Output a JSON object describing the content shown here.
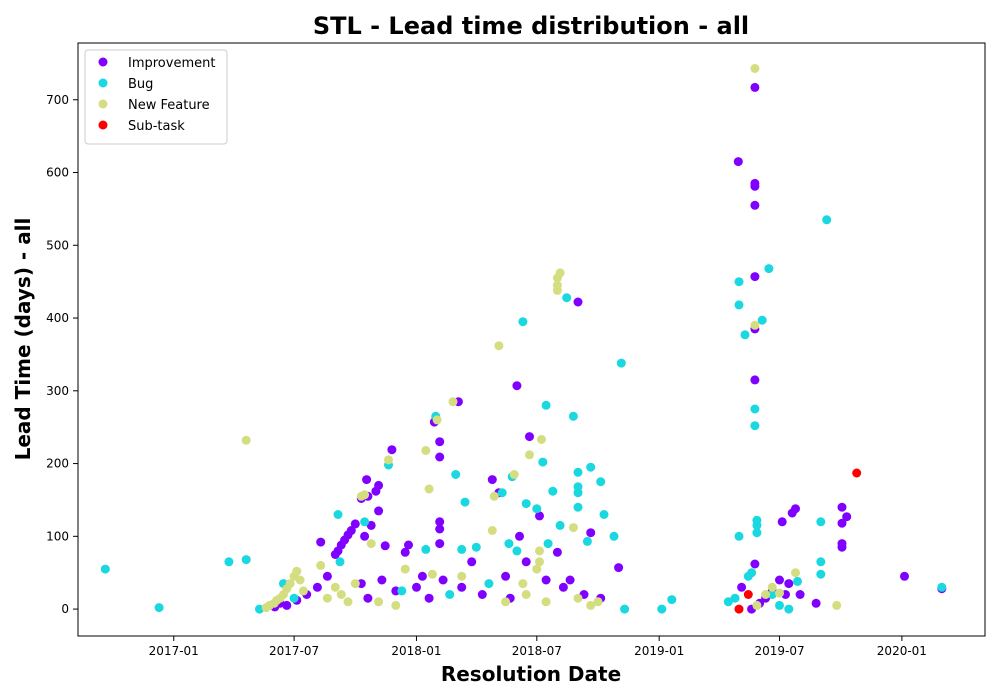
{
  "chart_data": {
    "type": "scatter",
    "title": "STL - Lead time distribution - all",
    "xlabel": "Resolution Date",
    "ylabel": "Lead Time (days) - all",
    "x_type": "date",
    "xlim": [
      "2016-08-10",
      "2020-05-05"
    ],
    "ylim": [
      -37,
      778
    ],
    "x_ticks": [
      {
        "label": "2017-01",
        "date": "2017-01-01"
      },
      {
        "label": "2017-07",
        "date": "2017-07-01"
      },
      {
        "label": "2018-01",
        "date": "2018-01-01"
      },
      {
        "label": "2018-07",
        "date": "2018-07-01"
      },
      {
        "label": "2019-01",
        "date": "2019-01-01"
      },
      {
        "label": "2019-07",
        "date": "2019-07-01"
      },
      {
        "label": "2020-01",
        "date": "2020-01-01"
      }
    ],
    "y_ticks": [
      0,
      100,
      200,
      300,
      400,
      500,
      600,
      700
    ],
    "grid": false,
    "legend_position": "top-left",
    "series": [
      {
        "name": "Improvement",
        "color": "#8000ff",
        "points": [
          [
            "2017-06-02",
            3
          ],
          [
            "2017-06-10",
            8
          ],
          [
            "2017-06-20",
            5
          ],
          [
            "2017-07-05",
            12
          ],
          [
            "2017-07-20",
            20
          ],
          [
            "2017-08-05",
            30
          ],
          [
            "2017-08-10",
            92
          ],
          [
            "2017-08-20",
            45
          ],
          [
            "2017-09-01",
            75
          ],
          [
            "2017-09-05",
            80
          ],
          [
            "2017-09-10",
            88
          ],
          [
            "2017-09-15",
            95
          ],
          [
            "2017-09-20",
            102
          ],
          [
            "2017-09-25",
            108
          ],
          [
            "2017-10-01",
            117
          ],
          [
            "2017-10-10",
            152
          ],
          [
            "2017-10-15",
            100
          ],
          [
            "2017-10-18",
            178
          ],
          [
            "2017-10-20",
            155
          ],
          [
            "2017-10-25",
            115
          ],
          [
            "2017-11-01",
            162
          ],
          [
            "2017-11-05",
            135
          ],
          [
            "2017-11-05",
            170
          ],
          [
            "2017-11-15",
            87
          ],
          [
            "2017-11-25",
            219
          ],
          [
            "2017-10-10",
            35
          ],
          [
            "2017-10-20",
            15
          ],
          [
            "2017-11-10",
            40
          ],
          [
            "2017-12-01",
            25
          ],
          [
            "2017-12-15",
            78
          ],
          [
            "2017-12-20",
            88
          ],
          [
            "2018-01-01",
            30
          ],
          [
            "2018-01-10",
            45
          ],
          [
            "2018-01-20",
            15
          ],
          [
            "2018-01-28",
            257
          ],
          [
            "2018-02-05",
            230
          ],
          [
            "2018-02-05",
            209
          ],
          [
            "2018-02-05",
            120
          ],
          [
            "2018-02-05",
            110
          ],
          [
            "2018-02-05",
            90
          ],
          [
            "2018-02-10",
            40
          ],
          [
            "2018-03-05",
            285
          ],
          [
            "2018-03-10",
            30
          ],
          [
            "2018-03-25",
            65
          ],
          [
            "2018-04-10",
            20
          ],
          [
            "2018-04-25",
            178
          ],
          [
            "2018-05-05",
            160
          ],
          [
            "2018-05-15",
            45
          ],
          [
            "2018-05-22",
            15
          ],
          [
            "2018-06-01",
            307
          ],
          [
            "2018-06-05",
            100
          ],
          [
            "2018-06-15",
            65
          ],
          [
            "2018-06-20",
            237
          ],
          [
            "2018-07-05",
            128
          ],
          [
            "2018-07-15",
            40
          ],
          [
            "2018-08-01",
            78
          ],
          [
            "2018-08-10",
            30
          ],
          [
            "2018-08-20",
            40
          ],
          [
            "2018-09-01",
            422
          ],
          [
            "2018-09-10",
            20
          ],
          [
            "2018-09-20",
            105
          ],
          [
            "2018-10-05",
            15
          ],
          [
            "2018-11-01",
            57
          ],
          [
            "2019-04-30",
            615
          ],
          [
            "2019-05-05",
            30
          ],
          [
            "2019-05-20",
            0
          ],
          [
            "2019-05-25",
            717
          ],
          [
            "2019-05-25",
            585
          ],
          [
            "2019-05-25",
            581
          ],
          [
            "2019-05-25",
            555
          ],
          [
            "2019-05-25",
            457
          ],
          [
            "2019-05-25",
            385
          ],
          [
            "2019-05-25",
            315
          ],
          [
            "2019-05-25",
            62
          ],
          [
            "2019-06-01",
            8
          ],
          [
            "2019-06-10",
            15
          ],
          [
            "2019-06-20",
            25
          ],
          [
            "2019-07-01",
            40
          ],
          [
            "2019-07-05",
            120
          ],
          [
            "2019-07-10",
            20
          ],
          [
            "2019-07-15",
            35
          ],
          [
            "2019-07-20",
            132
          ],
          [
            "2019-07-25",
            138
          ],
          [
            "2019-08-01",
            20
          ],
          [
            "2019-08-25",
            8
          ],
          [
            "2019-10-03",
            140
          ],
          [
            "2019-10-03",
            118
          ],
          [
            "2019-10-03",
            90
          ],
          [
            "2019-10-03",
            85
          ],
          [
            "2019-10-10",
            127
          ],
          [
            "2020-01-05",
            45
          ],
          [
            "2020-03-01",
            28
          ]
        ]
      },
      {
        "name": "Bug",
        "color": "#1ad8e0",
        "points": [
          [
            "2016-09-20",
            55
          ],
          [
            "2016-12-10",
            2
          ],
          [
            "2017-03-25",
            65
          ],
          [
            "2017-04-20",
            68
          ],
          [
            "2017-05-10",
            0
          ],
          [
            "2017-06-15",
            35
          ],
          [
            "2017-07-01",
            15
          ],
          [
            "2017-09-05",
            130
          ],
          [
            "2017-09-08",
            65
          ],
          [
            "2017-10-15",
            120
          ],
          [
            "2017-11-20",
            198
          ],
          [
            "2017-12-10",
            25
          ],
          [
            "2018-01-15",
            82
          ],
          [
            "2018-01-30",
            265
          ],
          [
            "2018-02-20",
            20
          ],
          [
            "2018-03-01",
            185
          ],
          [
            "2018-03-10",
            82
          ],
          [
            "2018-03-15",
            147
          ],
          [
            "2018-04-01",
            85
          ],
          [
            "2018-04-20",
            35
          ],
          [
            "2018-05-10",
            160
          ],
          [
            "2018-05-20",
            90
          ],
          [
            "2018-05-25",
            182
          ],
          [
            "2018-06-01",
            80
          ],
          [
            "2018-06-10",
            395
          ],
          [
            "2018-06-15",
            145
          ],
          [
            "2018-07-01",
            138
          ],
          [
            "2018-07-10",
            202
          ],
          [
            "2018-07-15",
            280
          ],
          [
            "2018-07-18",
            90
          ],
          [
            "2018-07-25",
            162
          ],
          [
            "2018-08-05",
            115
          ],
          [
            "2018-08-15",
            428
          ],
          [
            "2018-08-25",
            265
          ],
          [
            "2018-09-01",
            188
          ],
          [
            "2018-09-01",
            168
          ],
          [
            "2018-09-01",
            160
          ],
          [
            "2018-09-01",
            140
          ],
          [
            "2018-09-15",
            93
          ],
          [
            "2018-09-20",
            195
          ],
          [
            "2018-10-05",
            175
          ],
          [
            "2018-10-10",
            130
          ],
          [
            "2018-10-25",
            100
          ],
          [
            "2018-11-05",
            338
          ],
          [
            "2018-11-10",
            0
          ],
          [
            "2019-01-05",
            0
          ],
          [
            "2019-01-20",
            13
          ],
          [
            "2019-04-15",
            10
          ],
          [
            "2019-04-25",
            15
          ],
          [
            "2019-05-01",
            450
          ],
          [
            "2019-05-01",
            418
          ],
          [
            "2019-05-01",
            100
          ],
          [
            "2019-05-10",
            377
          ],
          [
            "2019-05-15",
            45
          ],
          [
            "2019-05-20",
            50
          ],
          [
            "2019-05-25",
            275
          ],
          [
            "2019-05-25",
            252
          ],
          [
            "2019-05-28",
            122
          ],
          [
            "2019-05-28",
            115
          ],
          [
            "2019-05-28",
            105
          ],
          [
            "2019-06-05",
            397
          ],
          [
            "2019-06-15",
            468
          ],
          [
            "2019-06-20",
            20
          ],
          [
            "2019-07-01",
            5
          ],
          [
            "2019-07-15",
            0
          ],
          [
            "2019-07-28",
            38
          ],
          [
            "2019-09-01",
            120
          ],
          [
            "2019-09-01",
            65
          ],
          [
            "2019-09-01",
            48
          ],
          [
            "2019-09-10",
            535
          ],
          [
            "2020-03-01",
            30
          ]
        ]
      },
      {
        "name": "New Feature",
        "color": "#d4dd80",
        "points": [
          [
            "2017-04-20",
            232
          ],
          [
            "2017-05-20",
            2
          ],
          [
            "2017-05-25",
            5
          ],
          [
            "2017-06-01",
            8
          ],
          [
            "2017-06-05",
            12
          ],
          [
            "2017-06-10",
            15
          ],
          [
            "2017-06-15",
            20
          ],
          [
            "2017-06-20",
            28
          ],
          [
            "2017-06-25",
            35
          ],
          [
            "2017-07-01",
            45
          ],
          [
            "2017-07-05",
            52
          ],
          [
            "2017-07-10",
            40
          ],
          [
            "2017-07-15",
            25
          ],
          [
            "2017-08-10",
            60
          ],
          [
            "2017-08-20",
            15
          ],
          [
            "2017-09-01",
            30
          ],
          [
            "2017-09-10",
            20
          ],
          [
            "2017-09-20",
            10
          ],
          [
            "2017-10-01",
            35
          ],
          [
            "2017-10-10",
            155
          ],
          [
            "2017-10-15",
            157
          ],
          [
            "2017-10-25",
            90
          ],
          [
            "2017-11-05",
            10
          ],
          [
            "2017-11-20",
            205
          ],
          [
            "2017-12-01",
            5
          ],
          [
            "2017-12-15",
            55
          ],
          [
            "2018-01-15",
            218
          ],
          [
            "2018-01-20",
            165
          ],
          [
            "2018-01-25",
            48
          ],
          [
            "2018-02-01",
            260
          ],
          [
            "2018-02-25",
            285
          ],
          [
            "2018-03-10",
            45
          ],
          [
            "2018-04-25",
            108
          ],
          [
            "2018-04-28",
            155
          ],
          [
            "2018-05-05",
            362
          ],
          [
            "2018-05-15",
            10
          ],
          [
            "2018-05-28",
            185
          ],
          [
            "2018-06-10",
            35
          ],
          [
            "2018-06-15",
            20
          ],
          [
            "2018-06-20",
            212
          ],
          [
            "2018-07-01",
            55
          ],
          [
            "2018-07-05",
            65
          ],
          [
            "2018-07-05",
            80
          ],
          [
            "2018-07-08",
            233
          ],
          [
            "2018-07-15",
            10
          ],
          [
            "2018-08-01",
            455
          ],
          [
            "2018-08-01",
            445
          ],
          [
            "2018-08-01",
            438
          ],
          [
            "2018-08-05",
            462
          ],
          [
            "2018-08-25",
            112
          ],
          [
            "2018-09-01",
            15
          ],
          [
            "2018-09-20",
            5
          ],
          [
            "2018-10-01",
            10
          ],
          [
            "2019-05-25",
            390
          ],
          [
            "2019-05-25",
            743
          ],
          [
            "2019-05-28",
            5
          ],
          [
            "2019-06-10",
            20
          ],
          [
            "2019-06-20",
            30
          ],
          [
            "2019-07-01",
            22
          ],
          [
            "2019-07-25",
            50
          ],
          [
            "2019-09-25",
            5
          ]
        ]
      },
      {
        "name": "Sub-task",
        "color": "#ff0000",
        "points": [
          [
            "2019-05-01",
            0
          ],
          [
            "2019-05-15",
            20
          ],
          [
            "2019-10-25",
            187
          ]
        ]
      }
    ]
  }
}
